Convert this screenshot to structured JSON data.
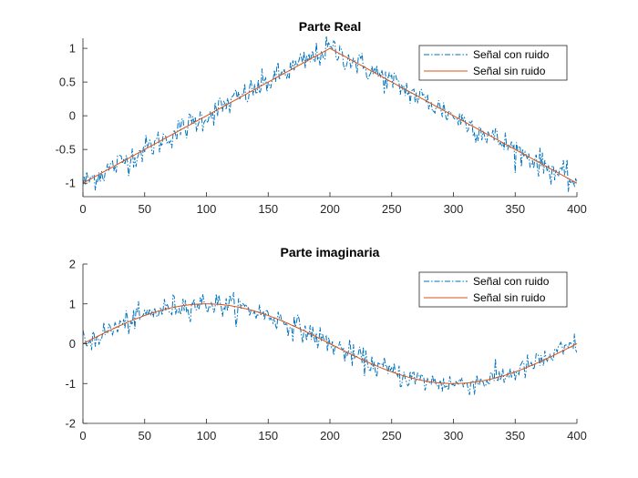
{
  "figure": {
    "background": "#ffffff"
  },
  "chart_data": [
    {
      "type": "line",
      "title": "Parte Real",
      "xlabel": "",
      "ylabel": "",
      "xlim": [
        0,
        400
      ],
      "ylim": [
        -1.2,
        1.15
      ],
      "grid": false,
      "legend_position": "top-right",
      "xticks": [
        0,
        50,
        100,
        150,
        200,
        250,
        300,
        350,
        400
      ],
      "xtick_labels": [
        "0",
        "50",
        "100",
        "150",
        "200",
        "250",
        "300",
        "350",
        "400"
      ],
      "yticks": [
        1,
        0.5,
        0,
        -0.5,
        -1
      ],
      "ytick_labels": [
        "1",
        "0.5",
        "0",
        "-0.5",
        "-1"
      ],
      "clean_shape": "triangle",
      "noise_std": 0.1,
      "series": [
        {
          "name": "Señal con ruido",
          "color": "#0072BD",
          "style": "dash-dot",
          "x": [
            0,
            50,
            100,
            150,
            200,
            250,
            300,
            350,
            400
          ],
          "values": [
            -0.98,
            -0.46,
            0.03,
            0.5,
            1.03,
            0.5,
            0.01,
            -0.5,
            -1.02
          ]
        },
        {
          "name": "Señal sin ruido",
          "color": "#D95319",
          "style": "solid",
          "x": [
            0,
            50,
            100,
            150,
            200,
            250,
            300,
            350,
            400
          ],
          "values": [
            -1,
            -0.5,
            0,
            0.5,
            1,
            0.5,
            0,
            -0.5,
            -1
          ]
        }
      ]
    },
    {
      "type": "line",
      "title": "Parte imaginaria",
      "xlabel": "",
      "ylabel": "",
      "xlim": [
        0,
        400
      ],
      "ylim": [
        -2,
        2
      ],
      "grid": false,
      "legend_position": "top-right",
      "xticks": [
        0,
        50,
        100,
        150,
        200,
        250,
        300,
        350,
        400
      ],
      "xtick_labels": [
        "0",
        "50",
        "100",
        "150",
        "200",
        "250",
        "300",
        "350",
        "400"
      ],
      "yticks": [
        2,
        1,
        0,
        -1,
        -2
      ],
      "ytick_labels": [
        "2",
        "1",
        "0",
        "-1",
        "-2"
      ],
      "clean_shape": "half-sine",
      "noise_std": 0.15,
      "series": [
        {
          "name": "Señal con ruido",
          "color": "#0072BD",
          "style": "dash-dot",
          "x": [
            0,
            50,
            100,
            150,
            200,
            250,
            300,
            350,
            400
          ],
          "values": [
            -0.02,
            0.71,
            1.02,
            0.7,
            0.03,
            -0.72,
            -0.98,
            -0.7,
            0.02
          ]
        },
        {
          "name": "Señal sin ruido",
          "color": "#D95319",
          "style": "solid",
          "x": [
            0,
            50,
            100,
            150,
            200,
            250,
            300,
            350,
            400
          ],
          "values": [
            0,
            0.71,
            1,
            0.71,
            0,
            -0.71,
            -1,
            -0.71,
            0
          ]
        }
      ]
    }
  ]
}
